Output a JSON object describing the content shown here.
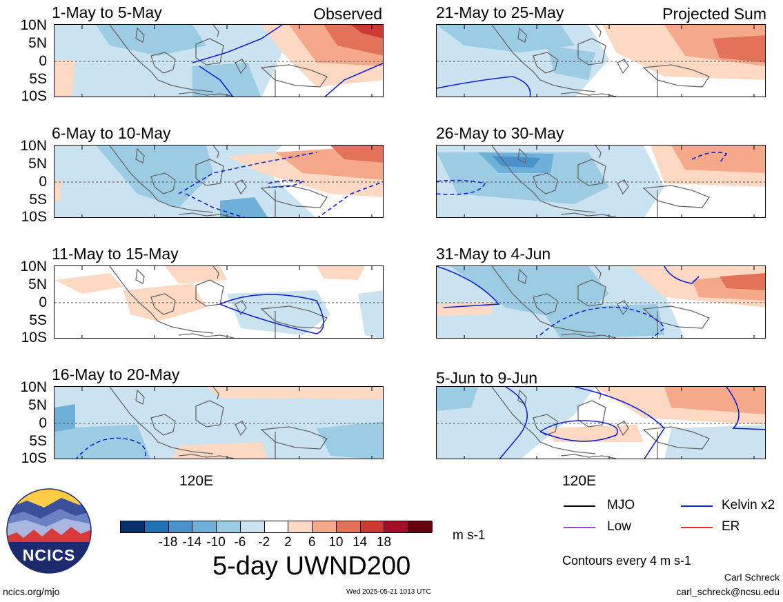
{
  "panels": [
    {
      "title": "1-May to 5-May",
      "tag": "Observed"
    },
    {
      "title": "6-May to 10-May",
      "tag": ""
    },
    {
      "title": "11-May to 15-May",
      "tag": ""
    },
    {
      "title": "16-May to 20-May",
      "tag": ""
    },
    {
      "title": "21-May to 25-May",
      "tag": "Projected Sum"
    },
    {
      "title": "26-May to 30-May",
      "tag": ""
    },
    {
      "title": "31-May to 4-Jun",
      "tag": ""
    },
    {
      "title": "5-Jun to 9-Jun",
      "tag": ""
    }
  ],
  "lat_labels": [
    "10N",
    "5N",
    "0",
    "5S",
    "10S"
  ],
  "lon_label": "120E",
  "colorbar": {
    "colors": [
      "#08306b",
      "#2171b5",
      "#4a92cb",
      "#6fb0d8",
      "#9ccbe4",
      "#cbe2f0",
      "#ffffff",
      "#fdd8c3",
      "#f5a98a",
      "#e2725a",
      "#cb3b33",
      "#a50f25",
      "#67000d"
    ],
    "ticks": [
      "-18",
      "-14",
      "-10",
      "-6",
      "-2",
      "2",
      "6",
      "10",
      "14",
      "18"
    ],
    "units": "m s-1"
  },
  "main_title": "5-day UWND200",
  "legend": {
    "items": [
      {
        "label": "MJO",
        "color": "#000000"
      },
      {
        "label": "Kelvin x2",
        "color": "#1020d0"
      },
      {
        "label": "Low",
        "color": "#9a40e0"
      },
      {
        "label": "ER",
        "color": "#e03020"
      }
    ],
    "contours_note": "Contours every 4 m s-1"
  },
  "logo": {
    "text": "NCICS"
  },
  "footer": {
    "url": "ncics.org/mjo",
    "timestamp": "Wed 2025-05-21 1013 UTC",
    "author": "Carl Schreck",
    "email": "carl_schreck@ncsu.edu"
  }
}
